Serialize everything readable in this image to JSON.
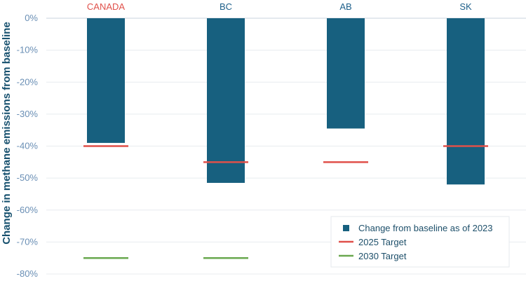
{
  "chart_data": {
    "type": "bar",
    "ylabel": "Change in methane emissions from baseline",
    "categories": [
      "CANADA",
      "BC",
      "AB",
      "SK"
    ],
    "category_colors": [
      "#e0504a",
      "#1d5f8a",
      "#1d5f8a",
      "#1d5f8a"
    ],
    "ylim": [
      -80,
      0
    ],
    "yticks": [
      0,
      -10,
      -20,
      -30,
      -40,
      -50,
      -60,
      -70,
      -80
    ],
    "ytick_labels": [
      "0%",
      "-10%",
      "-20%",
      "-30%",
      "-40%",
      "-50%",
      "-60%",
      "-70%",
      "-80%"
    ],
    "grid": true,
    "legend_position": "bottom-right",
    "series": [
      {
        "name": "Change from baseline as of 2023",
        "kind": "bar",
        "color": "#17607f",
        "values": [
          -39,
          -51.5,
          -34.5,
          -52
        ]
      },
      {
        "name": "2025 Target",
        "kind": "marker",
        "color": "#e0504a",
        "values": [
          -40,
          -45,
          -45,
          -40
        ]
      },
      {
        "name": "2030 Target",
        "kind": "marker",
        "color": "#6aa84f",
        "values": [
          -75,
          -75,
          null,
          null
        ]
      }
    ]
  }
}
